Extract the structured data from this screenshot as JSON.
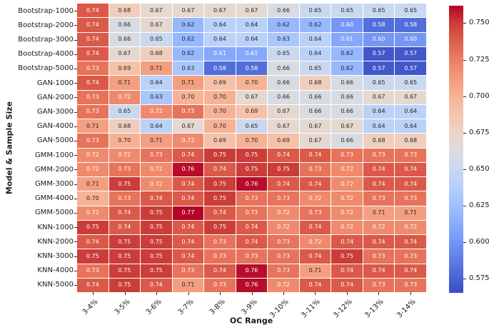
{
  "chart_data": {
    "type": "heatmap",
    "title": "",
    "xlabel": "OC Range",
    "ylabel": "Model & Sample Size",
    "columns": [
      "3-4%",
      "3-5%",
      "3-6%",
      "3-7%",
      "3-8%",
      "3-9%",
      "3-10%",
      "3-11%",
      "3-12%",
      "3-13%",
      "3-14%"
    ],
    "rows": [
      "Bootstrap-1000",
      "Bootstrap-2000",
      "Bootstrap-3000",
      "Bootstrap-4000",
      "Bootstrap-5000",
      "GAN-1000",
      "GAN-2000",
      "GAN-3000",
      "GAN-4000",
      "GAN-5000",
      "GMM-1000",
      "GMM-2000",
      "GMM-3000",
      "GMM-4000",
      "GMM-5000",
      "KNN-1000",
      "KNN-2000",
      "KNN-3000",
      "KNN-4000",
      "KNN-5000"
    ],
    "values": [
      [
        0.74,
        0.68,
        0.67,
        0.67,
        0.67,
        0.67,
        0.66,
        0.65,
        0.65,
        0.65,
        0.65
      ],
      [
        0.74,
        0.66,
        0.67,
        0.62,
        0.64,
        0.64,
        0.62,
        0.62,
        0.6,
        0.58,
        0.58
      ],
      [
        0.74,
        0.66,
        0.65,
        0.62,
        0.64,
        0.64,
        0.63,
        0.64,
        0.61,
        0.6,
        0.6
      ],
      [
        0.74,
        0.67,
        0.68,
        0.62,
        0.61,
        0.61,
        0.65,
        0.64,
        0.62,
        0.57,
        0.57
      ],
      [
        0.73,
        0.69,
        0.71,
        0.63,
        0.58,
        0.58,
        0.66,
        0.65,
        0.62,
        0.57,
        0.57
      ],
      [
        0.74,
        0.71,
        0.64,
        0.71,
        0.69,
        0.7,
        0.66,
        0.68,
        0.66,
        0.65,
        0.65
      ],
      [
        0.73,
        0.72,
        0.63,
        0.7,
        0.7,
        0.67,
        0.66,
        0.66,
        0.66,
        0.67,
        0.67
      ],
      [
        0.73,
        0.65,
        0.72,
        0.73,
        0.7,
        0.69,
        0.67,
        0.66,
        0.66,
        0.64,
        0.64
      ],
      [
        0.71,
        0.68,
        0.64,
        0.67,
        0.7,
        0.65,
        0.67,
        0.67,
        0.67,
        0.64,
        0.64
      ],
      [
        0.73,
        0.7,
        0.71,
        0.72,
        0.69,
        0.7,
        0.69,
        0.67,
        0.66,
        0.68,
        0.68
      ],
      [
        0.72,
        0.72,
        0.73,
        0.74,
        0.75,
        0.75,
        0.74,
        0.74,
        0.73,
        0.73,
        0.73
      ],
      [
        0.72,
        0.73,
        0.72,
        0.76,
        0.74,
        0.75,
        0.75,
        0.73,
        0.72,
        0.74,
        0.74
      ],
      [
        0.71,
        0.75,
        0.72,
        0.74,
        0.75,
        0.76,
        0.74,
        0.74,
        0.72,
        0.74,
        0.74
      ],
      [
        0.7,
        0.73,
        0.74,
        0.74,
        0.75,
        0.73,
        0.73,
        0.72,
        0.72,
        0.73,
        0.73
      ],
      [
        0.72,
        0.74,
        0.75,
        0.77,
        0.74,
        0.73,
        0.72,
        0.73,
        0.72,
        0.71,
        0.71
      ],
      [
        0.75,
        0.74,
        0.75,
        0.74,
        0.75,
        0.74,
        0.72,
        0.74,
        0.72,
        0.72,
        0.72
      ],
      [
        0.74,
        0.75,
        0.75,
        0.74,
        0.73,
        0.74,
        0.73,
        0.72,
        0.74,
        0.74,
        0.74
      ],
      [
        0.75,
        0.75,
        0.75,
        0.74,
        0.73,
        0.73,
        0.73,
        0.74,
        0.75,
        0.73,
        0.73
      ],
      [
        0.73,
        0.75,
        0.75,
        0.73,
        0.74,
        0.76,
        0.73,
        0.71,
        0.74,
        0.74,
        0.74
      ],
      [
        0.74,
        0.75,
        0.74,
        0.71,
        0.73,
        0.76,
        0.72,
        0.74,
        0.74,
        0.73,
        0.73
      ]
    ],
    "value_decimals": 2,
    "colormap": "coolwarm",
    "vmin": 0.565,
    "vmax": 0.762,
    "colorbar": {
      "position": "right",
      "ticks": [
        0.75,
        0.725,
        0.7,
        0.675,
        0.65,
        0.625,
        0.6,
        0.575
      ],
      "tick_decimals": 3
    },
    "cell_border_color": "#ffffff",
    "xtick_rotation_deg": 45,
    "legend_position": "right-colorbar",
    "grid": "white cell separators"
  }
}
